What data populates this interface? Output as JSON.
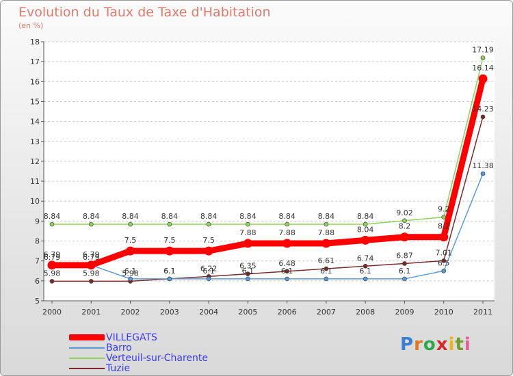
{
  "title": "Evolution du Taux de Taxe d'Habitation",
  "subtitle": "(en %)",
  "logo": {
    "text": "Proxiti",
    "letter_colors": [
      "#3a7fd0",
      "#e27820",
      "#2fa84a",
      "#d4282a",
      "#e8b51d",
      "#6e9b2c",
      "#e85d9a"
    ]
  },
  "chart_data": {
    "type": "line",
    "title": "Evolution du Taux de Taxe d'Habitation",
    "ylabel": "(en %)",
    "xlabel": "",
    "x": [
      "2000",
      "2001",
      "2002",
      "2003",
      "2004",
      "2005",
      "2006",
      "2007",
      "2008",
      "2009",
      "2010",
      "2011"
    ],
    "ylim": [
      5,
      18
    ],
    "yticks": [
      5,
      6,
      7,
      8,
      9,
      10,
      11,
      12,
      13,
      14,
      15,
      16,
      17,
      18
    ],
    "grid": "horizontal dashed",
    "legend_position": "bottom-left",
    "series": [
      {
        "name": "VILLEGATS",
        "color": "#ff0000",
        "values": [
          6.79,
          6.79,
          7.5,
          7.5,
          7.5,
          7.88,
          7.88,
          7.88,
          8.04,
          8.2,
          8.2,
          16.14
        ],
        "labels": [
          "6.79",
          "6.79",
          "7.5",
          "7.5",
          "7.5",
          "7.88",
          "7.88",
          "7.88",
          "8.04",
          "8.2",
          "8.2",
          "16.14"
        ]
      },
      {
        "name": "Barro",
        "color": "#5b9bd5",
        "values": [
          6.79,
          6.79,
          6.1,
          6.1,
          6.1,
          6.1,
          6.1,
          6.1,
          6.1,
          6.1,
          6.5,
          11.38
        ],
        "labels": [
          "6.79",
          "6.79",
          "6.1",
          "6.1",
          "6.1",
          "6.1",
          "6.1",
          "6.1",
          "6.1",
          "6.1",
          "6.5",
          "11.38"
        ]
      },
      {
        "name": "Verteuil-sur-Charente",
        "color": "#8fd15c",
        "values": [
          8.84,
          8.84,
          8.84,
          8.84,
          8.84,
          8.84,
          8.84,
          8.84,
          8.84,
          9.02,
          9.2,
          17.19
        ],
        "labels": [
          "8.84",
          "8.84",
          "8.84",
          "8.84",
          "8.84",
          "8.84",
          "8.84",
          "8.84",
          "8.84",
          "9.02",
          "9.2",
          "17.19"
        ]
      },
      {
        "name": "Tuzie",
        "color": "#7a2a2a",
        "values": [
          5.98,
          5.98,
          5.98,
          6.1,
          6.22,
          6.35,
          6.48,
          6.61,
          6.74,
          6.87,
          7.01,
          14.23
        ],
        "labels": [
          "5.98",
          "5.98",
          "5.98",
          "6.1",
          "6.22",
          "6.35",
          "6.48",
          "6.61",
          "6.74",
          "6.87",
          "7.01",
          "14.23"
        ]
      }
    ]
  }
}
